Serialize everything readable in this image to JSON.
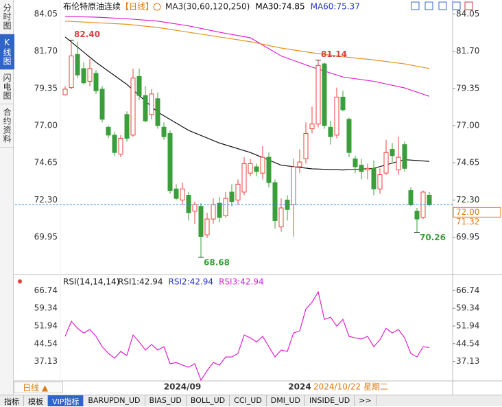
{
  "ui": {
    "sidebar_tabs": [
      "分时图",
      "K线图",
      "闪电图",
      "合约资料"
    ],
    "active_tab": 1,
    "period_button": "日线 ▲",
    "bottom_tabs": [
      "指标",
      "模板",
      "VIP指标",
      "BARUPDN_UD",
      "BIAS_UD",
      "BOLL_UD",
      "CCI_UD",
      "DMI_UD",
      "INSIDE_UD",
      ">>"
    ],
    "active_bottom_tab": 2,
    "cursor_date": "2024/10/22 星期二"
  },
  "chart_data": [
    {
      "type": "candlestick",
      "title": "布伦特原油连续",
      "period_label": "【日线】",
      "legend": [
        "MA3(30,60,120,250)",
        "MA30:74.85",
        "MA60:75.37"
      ],
      "legend_colors": [
        "#222222",
        "#000000",
        "#2233cc"
      ],
      "up_color": "#e8413b",
      "down_color": "#3a9e3a",
      "categories": [
        null,
        null,
        null,
        null,
        null,
        null,
        null,
        null,
        null,
        null,
        null,
        null,
        null,
        null,
        null,
        null,
        null,
        null,
        null,
        "2024/09",
        null,
        null,
        null,
        null,
        null,
        null,
        null,
        null,
        null,
        null,
        null,
        null,
        null,
        null,
        null,
        null,
        null,
        null,
        "2024",
        null,
        null,
        null,
        null,
        null,
        null,
        null,
        null,
        null,
        null,
        null,
        null,
        null,
        null,
        null,
        null,
        null,
        null,
        null,
        null,
        null
      ],
      "open": [
        78.95,
        79.4,
        81.5,
        80.6,
        79.8,
        80.3,
        79.3,
        76.9,
        76.4,
        75.2,
        77.7,
        76.4,
        80.1,
        78.9,
        77.7,
        78.7,
        76.9,
        76.5,
        73.0,
        72.3,
        72.6,
        71.6,
        71.9,
        70.1,
        71.1,
        72.1,
        71.3,
        72.8,
        72.3,
        72.8,
        74.0,
        74.4,
        74.0,
        75.0,
        73.4,
        70.6,
        72.3,
        72.0,
        74.4,
        74.9,
        76.8,
        77.1,
        80.9,
        76.9,
        76.4,
        78.8,
        77.4,
        74.9,
        74.5,
        74.2,
        74.3,
        73.0,
        74.0,
        75.5,
        74.2,
        75.8,
        72.9,
        71.6,
        71.2,
        72.6
      ],
      "high": [
        79.5,
        82.4,
        82.3,
        81.0,
        81.2,
        80.5,
        79.5,
        77.0,
        76.6,
        76.4,
        77.9,
        80.6,
        80.6,
        79.5,
        79.3,
        79.1,
        77.2,
        76.7,
        73.3,
        73.4,
        72.8,
        72.2,
        72.1,
        71.5,
        72.4,
        72.5,
        72.8,
        73.3,
        73.6,
        75.0,
        74.9,
        74.6,
        75.7,
        75.3,
        73.6,
        72.4,
        72.6,
        74.9,
        75.5,
        77.2,
        78.2,
        81.14,
        81.0,
        77.3,
        79.4,
        79.2,
        77.5,
        75.1,
        74.9,
        74.6,
        74.8,
        74.3,
        76.1,
        75.9,
        76.3,
        76.0,
        73.1,
        71.8,
        72.9,
        72.8
      ],
      "low": [
        78.9,
        79.3,
        80.0,
        79.6,
        79.5,
        79.0,
        77.2,
        76.2,
        75.1,
        75.0,
        76.0,
        76.3,
        78.6,
        77.2,
        77.4,
        76.8,
        76.1,
        72.7,
        72.3,
        72.0,
        71.0,
        70.8,
        68.68,
        69.9,
        70.8,
        70.9,
        71.2,
        71.9,
        72.0,
        72.6,
        73.8,
        73.8,
        73.6,
        73.1,
        70.5,
        70.3,
        71.0,
        70.0,
        74.0,
        74.6,
        76.5,
        76.9,
        76.8,
        75.8,
        76.2,
        77.9,
        75.0,
        74.0,
        73.6,
        73.6,
        72.6,
        72.7,
        73.9,
        74.7,
        73.9,
        74.1,
        71.9,
        70.26,
        71.1,
        71.9
      ],
      "close": [
        79.3,
        81.4,
        80.2,
        79.7,
        80.6,
        79.2,
        77.4,
        76.4,
        75.3,
        76.2,
        76.2,
        80.0,
        78.9,
        77.3,
        79.0,
        77.0,
        76.3,
        72.9,
        72.4,
        73.0,
        71.5,
        72.0,
        70.0,
        71.1,
        72.0,
        71.2,
        72.4,
        72.2,
        73.3,
        74.6,
        74.6,
        74.1,
        75.0,
        73.4,
        71.0,
        71.8,
        71.7,
        74.4,
        74.7,
        76.5,
        77.1,
        80.8,
        77.0,
        76.3,
        78.8,
        78.0,
        75.3,
        74.4,
        74.1,
        74.3,
        73.0,
        73.9,
        75.3,
        75.1,
        75.0,
        74.3,
        72.0,
        71.1,
        72.8,
        72.0
      ],
      "series": [
        {
          "color": "#111111",
          "x": [
            0,
            5,
            10,
            15,
            20,
            25,
            30,
            35,
            40,
            45,
            50,
            55,
            59
          ],
          "values": [
            82.6,
            81.0,
            79.6,
            77.85,
            76.7,
            75.9,
            75.3,
            74.5,
            74.27,
            74.2,
            74.3,
            74.85,
            74.74
          ]
        },
        {
          "color": "#e020d0",
          "x": [
            0,
            5,
            10,
            15,
            20,
            25,
            30,
            35,
            40,
            45,
            50,
            55,
            59
          ],
          "values": [
            83.9,
            83.85,
            83.75,
            83.6,
            83.3,
            82.9,
            82.55,
            81.4,
            80.7,
            80.07,
            79.8,
            79.38,
            78.85
          ]
        },
        {
          "color": "#e8901a",
          "x": [
            0,
            5,
            10,
            15,
            20,
            25,
            30,
            35,
            40,
            45,
            50,
            55,
            59
          ],
          "values": [
            83.6,
            83.5,
            83.4,
            83.2,
            82.9,
            82.6,
            82.3,
            81.9,
            81.6,
            81.35,
            81.15,
            80.9,
            80.6
          ]
        }
      ],
      "last_price": {
        "value": 72,
        "label": "72.00"
      },
      "price_tag": 71.32,
      "annotations": [
        {
          "text": "82.40",
          "candle": 1
        },
        {
          "text": "81.14",
          "candle": 41
        },
        {
          "text": "68.68",
          "candle": 22
        },
        {
          "text": "70.26",
          "candle": 57
        }
      ],
      "ylim": [
        68.2,
        84.5
      ],
      "yticks": [
        84.05,
        {
          "value": 81.7,
          "label": "81.70"
        },
        79.35,
        {
          "value": 77,
          "label": "77.00"
        },
        74.65,
        {
          "value": 72.3,
          "label": "72.30"
        },
        69.95
      ]
    },
    {
      "type": "line",
      "title": "RSI(14,14,14)",
      "legend": [
        "RSI1:42.94",
        "RSI2:42.94",
        "RSI3:42.94"
      ],
      "legend_colors": [
        "#222222",
        "#2233cc",
        "#e020d0"
      ],
      "series": [
        {
          "color": "#e020d0",
          "values": [
            47.6,
            53.9,
            51.0,
            49.0,
            50.5,
            47.6,
            43.3,
            40.5,
            38.5,
            41.3,
            39.6,
            48.2,
            45.3,
            41.9,
            44.2,
            41.9,
            43.3,
            36.2,
            36.7,
            35.6,
            34.7,
            36.2,
            29.3,
            33.3,
            36.7,
            35.6,
            39.0,
            39.0,
            40.5,
            48.2,
            47.0,
            45.3,
            47.6,
            43.3,
            39.0,
            41.9,
            41.3,
            49.0,
            49.9,
            59.0,
            61.9,
            66.2,
            54.7,
            55.6,
            51.9,
            54.7,
            47.6,
            47.0,
            46.5,
            47.6,
            43.3,
            46.2,
            51.0,
            49.0,
            50.5,
            47.0,
            40.5,
            39.0,
            43.3,
            42.94
          ]
        }
      ],
      "ylim": [
        29,
        72
      ],
      "yticks": [
        66.74,
        59.34,
        51.94,
        44.54,
        37.13
      ]
    }
  ]
}
